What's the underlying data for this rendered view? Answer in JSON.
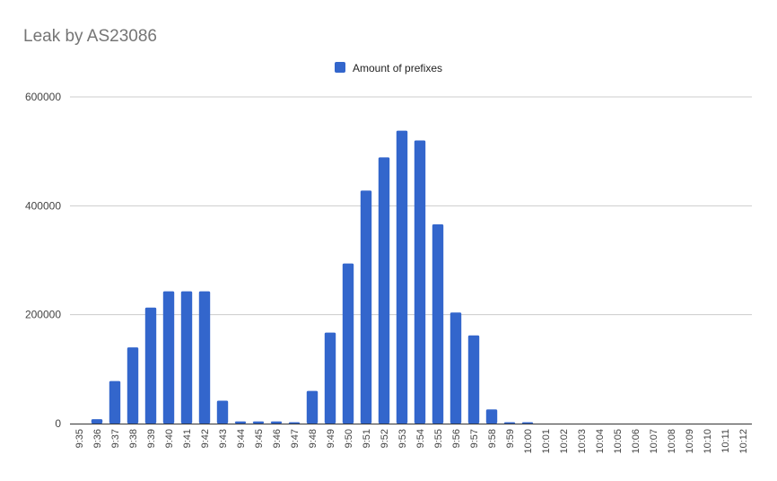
{
  "chart_data": {
    "type": "bar",
    "title": "Leak by AS23086",
    "xlabel": "",
    "ylabel": "",
    "legend_position": "top",
    "grid": true,
    "bar_color": "#3366cc",
    "ylim": [
      0,
      600000
    ],
    "yticks": [
      0,
      200000,
      400000,
      600000
    ],
    "ytick_labels": [
      "0",
      "200000",
      "400000",
      "600000"
    ],
    "categories": [
      "9:35",
      "9:36",
      "9:37",
      "9:38",
      "9:39",
      "9:40",
      "9:41",
      "9:42",
      "9:43",
      "9:44",
      "9:45",
      "9:46",
      "9:47",
      "9:48",
      "9:49",
      "9:50",
      "9:51",
      "9:52",
      "9:53",
      "9:54",
      "9:55",
      "9:56",
      "9:57",
      "9:58",
      "9:59",
      "10:00",
      "10:01",
      "10:02",
      "10:03",
      "10:04",
      "10:05",
      "10:06",
      "10:07",
      "10:08",
      "10:09",
      "10:10",
      "10:11",
      "10:12"
    ],
    "series": [
      {
        "name": "Amount of prefixes",
        "color": "#3366cc",
        "values": [
          0,
          8000,
          78000,
          140000,
          213000,
          243000,
          243000,
          243000,
          42000,
          4000,
          4000,
          4000,
          2000,
          60000,
          167000,
          294000,
          428000,
          489000,
          538000,
          520000,
          366000,
          204000,
          162000,
          26000,
          1500,
          1500,
          0,
          0,
          0,
          0,
          0,
          0,
          0,
          0,
          0,
          0,
          0,
          0
        ]
      }
    ]
  }
}
